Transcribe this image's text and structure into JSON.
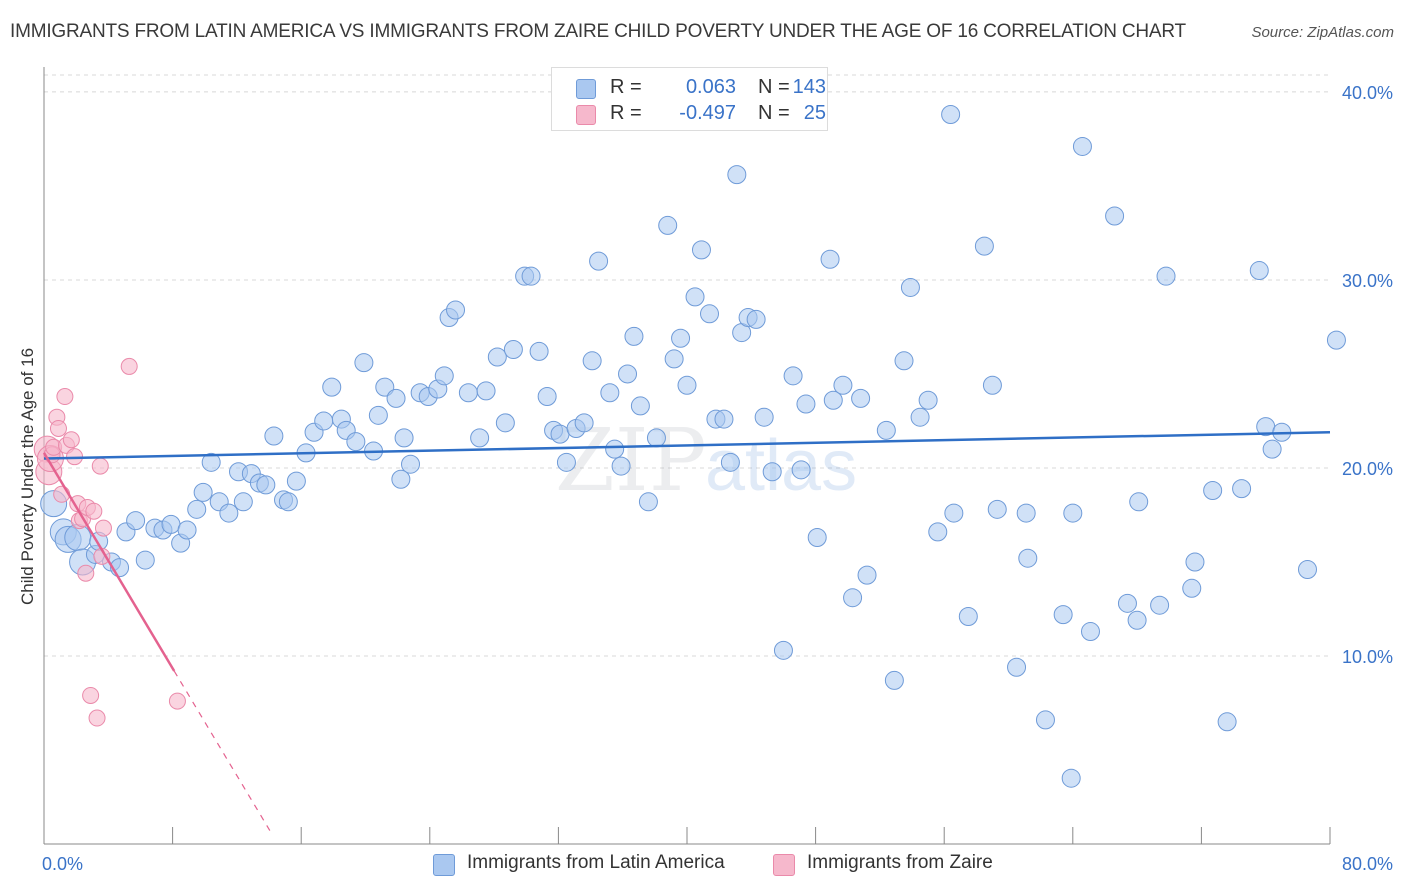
{
  "title": "IMMIGRANTS FROM LATIN AMERICA VS IMMIGRANTS FROM ZAIRE CHILD POVERTY UNDER THE AGE OF 16 CORRELATION CHART",
  "source": "Source: ZipAtlas.com",
  "watermark": {
    "zip": "ZIP",
    "atlas": "atlas"
  },
  "legend": {
    "rows": [
      {
        "r_label": "R =",
        "r_value": "0.063",
        "n_label": "N =",
        "n_value": "143",
        "color": "#aac8f0"
      },
      {
        "r_label": "R =",
        "r_value": "-0.497",
        "n_label": "N =",
        "n_value": "25",
        "color": "#f6b8cc"
      }
    ]
  },
  "colors": {
    "blue_fill": "#aac8f0",
    "blue_stroke": "#6f9bd8",
    "blue_line": "#2f6fc6",
    "pink_fill": "#f6b8cc",
    "pink_stroke": "#ea8aaa",
    "pink_line": "#e4628f",
    "tick_text": "#3a73c8",
    "grid": "#d8d8d8"
  },
  "chart_data": {
    "type": "scatter",
    "title": "IMMIGRANTS FROM LATIN AMERICA VS IMMIGRANTS FROM ZAIRE CHILD POVERTY UNDER THE AGE OF 16 CORRELATION CHART",
    "xlabel": "",
    "ylabel": "Child Poverty Under the Age of 16",
    "xlim": [
      0,
      80
    ],
    "ylim": [
      0,
      40.9
    ],
    "x_tick_labels": [
      "0.0%",
      "80.0%"
    ],
    "y_tick_labels": [
      "10.0%",
      "20.0%",
      "30.0%",
      "40.0%"
    ],
    "y_ticks": [
      10,
      20,
      30,
      40
    ],
    "grid": true,
    "legend_position": "bottom",
    "series": [
      {
        "name": "Immigrants from Latin America",
        "points": [
          [
            0.6,
            18.1
          ],
          [
            1.2,
            16.6
          ],
          [
            1.5,
            16.2
          ],
          [
            2.1,
            16.3
          ],
          [
            2.4,
            15.0
          ],
          [
            3.2,
            15.4
          ],
          [
            3.4,
            16.1
          ],
          [
            4.2,
            15.0
          ],
          [
            4.7,
            14.7
          ],
          [
            5.1,
            16.6
          ],
          [
            5.7,
            17.2
          ],
          [
            6.3,
            15.1
          ],
          [
            6.9,
            16.8
          ],
          [
            7.4,
            16.7
          ],
          [
            7.9,
            17.0
          ],
          [
            8.5,
            16.0
          ],
          [
            8.9,
            16.7
          ],
          [
            9.5,
            17.8
          ],
          [
            9.9,
            18.7
          ],
          [
            10.4,
            20.3
          ],
          [
            10.9,
            18.2
          ],
          [
            11.5,
            17.6
          ],
          [
            12.1,
            19.8
          ],
          [
            12.4,
            18.2
          ],
          [
            12.9,
            19.7
          ],
          [
            13.4,
            19.2
          ],
          [
            13.8,
            19.1
          ],
          [
            14.3,
            21.7
          ],
          [
            14.9,
            18.3
          ],
          [
            15.2,
            18.2
          ],
          [
            15.7,
            19.3
          ],
          [
            16.3,
            20.8
          ],
          [
            16.8,
            21.9
          ],
          [
            17.4,
            22.5
          ],
          [
            17.9,
            24.3
          ],
          [
            18.5,
            22.6
          ],
          [
            18.8,
            22.0
          ],
          [
            19.4,
            21.4
          ],
          [
            19.9,
            25.6
          ],
          [
            20.5,
            20.9
          ],
          [
            20.8,
            22.8
          ],
          [
            21.2,
            24.3
          ],
          [
            21.9,
            23.7
          ],
          [
            22.4,
            21.6
          ],
          [
            22.8,
            20.2
          ],
          [
            22.2,
            19.4
          ],
          [
            23.4,
            24.0
          ],
          [
            23.9,
            23.8
          ],
          [
            24.5,
            24.2
          ],
          [
            24.9,
            24.9
          ],
          [
            25.2,
            28.0
          ],
          [
            25.6,
            28.4
          ],
          [
            26.4,
            24.0
          ],
          [
            27.1,
            21.6
          ],
          [
            27.5,
            24.1
          ],
          [
            28.2,
            25.9
          ],
          [
            28.7,
            22.4
          ],
          [
            29.2,
            26.3
          ],
          [
            29.9,
            30.2
          ],
          [
            30.3,
            30.2
          ],
          [
            30.8,
            26.2
          ],
          [
            31.3,
            23.8
          ],
          [
            31.7,
            22.0
          ],
          [
            32.1,
            21.8
          ],
          [
            32.5,
            20.3
          ],
          [
            33.1,
            22.1
          ],
          [
            33.6,
            22.4
          ],
          [
            34.1,
            25.7
          ],
          [
            34.5,
            31.0
          ],
          [
            35.2,
            24.0
          ],
          [
            35.5,
            21.0
          ],
          [
            35.9,
            20.1
          ],
          [
            36.3,
            25.0
          ],
          [
            36.7,
            27.0
          ],
          [
            37.1,
            23.3
          ],
          [
            37.6,
            18.2
          ],
          [
            38.1,
            21.6
          ],
          [
            38.8,
            32.9
          ],
          [
            39.2,
            25.8
          ],
          [
            39.6,
            26.9
          ],
          [
            40.0,
            24.4
          ],
          [
            40.5,
            29.1
          ],
          [
            40.9,
            31.6
          ],
          [
            41.4,
            28.2
          ],
          [
            41.8,
            22.6
          ],
          [
            42.3,
            22.6
          ],
          [
            42.7,
            20.3
          ],
          [
            43.1,
            35.6
          ],
          [
            43.4,
            27.2
          ],
          [
            43.8,
            28.0
          ],
          [
            44.3,
            27.9
          ],
          [
            44.8,
            22.7
          ],
          [
            45.3,
            19.8
          ],
          [
            46.6,
            24.9
          ],
          [
            47.1,
            19.9
          ],
          [
            47.4,
            23.4
          ],
          [
            48.1,
            16.3
          ],
          [
            48.9,
            31.1
          ],
          [
            49.1,
            23.6
          ],
          [
            49.7,
            24.4
          ],
          [
            50.3,
            13.1
          ],
          [
            50.8,
            23.7
          ],
          [
            51.2,
            14.3
          ],
          [
            52.4,
            22.0
          ],
          [
            52.9,
            8.7
          ],
          [
            53.5,
            25.7
          ],
          [
            53.9,
            29.6
          ],
          [
            54.5,
            22.7
          ],
          [
            55.0,
            23.6
          ],
          [
            55.6,
            16.6
          ],
          [
            56.4,
            38.8
          ],
          [
            56.6,
            17.6
          ],
          [
            57.5,
            12.1
          ],
          [
            58.5,
            31.8
          ],
          [
            59.0,
            24.4
          ],
          [
            59.3,
            17.8
          ],
          [
            60.5,
            9.4
          ],
          [
            61.1,
            17.6
          ],
          [
            61.2,
            15.2
          ],
          [
            62.3,
            6.6
          ],
          [
            63.4,
            12.2
          ],
          [
            63.9,
            3.5
          ],
          [
            64.6,
            37.1
          ],
          [
            65.1,
            11.3
          ],
          [
            66.6,
            33.4
          ],
          [
            67.4,
            12.8
          ],
          [
            68.0,
            11.9
          ],
          [
            68.1,
            18.2
          ],
          [
            69.4,
            12.7
          ],
          [
            69.8,
            30.2
          ],
          [
            71.4,
            13.6
          ],
          [
            71.6,
            15.0
          ],
          [
            72.7,
            18.8
          ],
          [
            73.6,
            6.5
          ],
          [
            74.5,
            18.9
          ],
          [
            75.6,
            30.5
          ],
          [
            76.0,
            22.2
          ],
          [
            76.4,
            21.0
          ],
          [
            77.0,
            21.9
          ],
          [
            78.6,
            14.6
          ],
          [
            80.4,
            26.8
          ],
          [
            64.0,
            17.6
          ],
          [
            46.0,
            10.3
          ]
        ]
      },
      {
        "name": "Immigrants from Zaire",
        "points": [
          [
            0.2,
            21.0
          ],
          [
            0.3,
            19.8
          ],
          [
            0.4,
            20.5
          ],
          [
            0.5,
            20.7
          ],
          [
            0.6,
            21.1
          ],
          [
            0.8,
            22.7
          ],
          [
            0.9,
            22.1
          ],
          [
            1.1,
            18.6
          ],
          [
            1.3,
            23.8
          ],
          [
            1.4,
            21.2
          ],
          [
            1.7,
            21.5
          ],
          [
            1.9,
            20.6
          ],
          [
            2.1,
            18.1
          ],
          [
            2.2,
            17.2
          ],
          [
            2.4,
            17.3
          ],
          [
            2.6,
            14.4
          ],
          [
            2.7,
            17.9
          ],
          [
            2.9,
            7.9
          ],
          [
            3.1,
            17.7
          ],
          [
            3.3,
            6.7
          ],
          [
            3.5,
            20.1
          ],
          [
            3.6,
            15.3
          ],
          [
            3.7,
            16.8
          ],
          [
            5.3,
            25.4
          ],
          [
            8.3,
            7.6
          ]
        ]
      }
    ],
    "trend_lines": [
      {
        "series": "Immigrants from Latin America",
        "from": [
          0,
          20.5
        ],
        "to": [
          80,
          21.9
        ]
      },
      {
        "series": "Immigrants from Zaire",
        "from": [
          0,
          20.8
        ],
        "to": [
          8.1,
          9.2
        ],
        "dashed_to": [
          14.2,
          0.5
        ]
      }
    ]
  }
}
